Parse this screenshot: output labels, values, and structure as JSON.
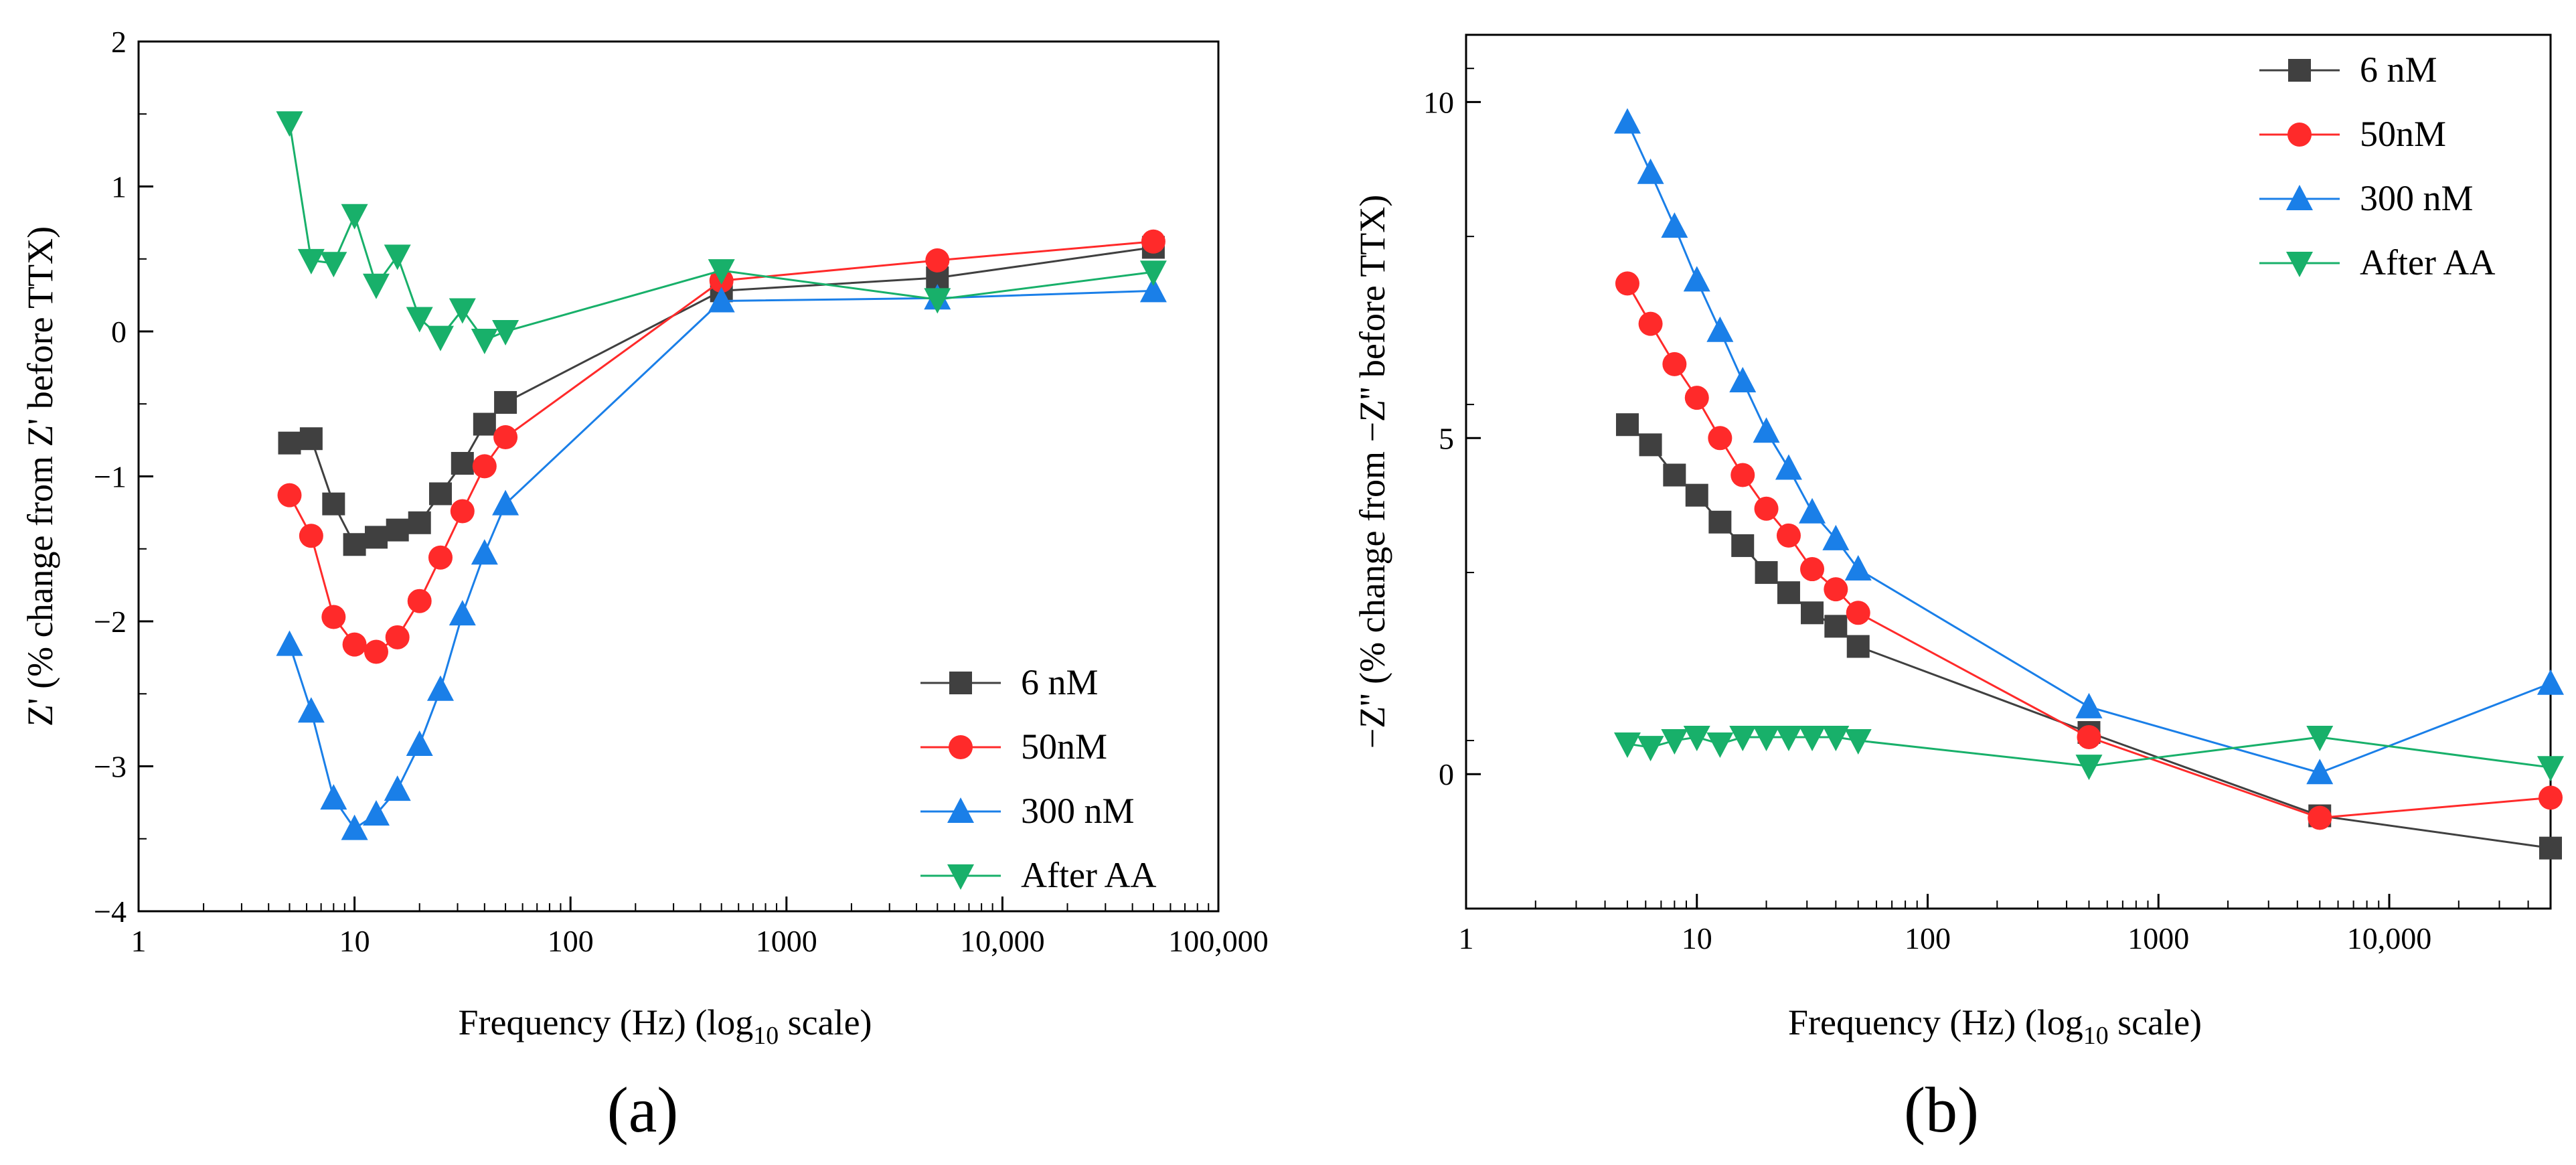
{
  "figure_labels": {
    "a": "(a)",
    "b": "(b)"
  },
  "legend_entries": [
    "6 nM",
    "50nM",
    "300 nM",
    "After AA"
  ],
  "colors": {
    "6 nM": "#404040",
    "50nM": "#ff2a2a",
    "300 nM": "#1a7fe8",
    "After AA": "#18b06a"
  },
  "chart_data": [
    {
      "id": "a",
      "type": "line",
      "xscale": "log10",
      "xlim": [
        1,
        100000
      ],
      "ylim": [
        -4,
        2
      ],
      "xticks": [
        1,
        10,
        100,
        1000,
        10000,
        100000
      ],
      "xtick_labels": [
        "1",
        "10",
        "100",
        "1000",
        "10,000",
        "100,000"
      ],
      "yticks": [
        -4,
        -3,
        -2,
        -1,
        0,
        1,
        2
      ],
      "ytick_labels": [
        "−4",
        "−3",
        "−2",
        "−1",
        "0",
        "1",
        "2"
      ],
      "xlabel": "Frequency (Hz) (log",
      "xlabel_sub": "10",
      "xlabel_tail": " scale)",
      "ylabel": "Z' (% change from Z' before TTX)",
      "legend_position": "bottom-right",
      "x": [
        5,
        6.3,
        8,
        10,
        12.6,
        15.8,
        20,
        25,
        31.6,
        40,
        50,
        500,
        5000,
        50000
      ],
      "series": [
        {
          "name": "6 nM",
          "marker": "square",
          "values": [
            -0.77,
            -0.74,
            -1.19,
            -1.47,
            -1.42,
            -1.37,
            -1.32,
            -1.12,
            -0.91,
            -0.64,
            -0.49,
            0.28,
            0.37,
            0.58
          ]
        },
        {
          "name": "50nM",
          "marker": "circle",
          "values": [
            -1.13,
            -1.41,
            -1.97,
            -2.16,
            -2.21,
            -2.11,
            -1.86,
            -1.56,
            -1.24,
            -0.93,
            -0.73,
            0.35,
            0.49,
            0.62
          ]
        },
        {
          "name": "300 nM",
          "marker": "triangle-up",
          "values": [
            -2.16,
            -2.62,
            -3.22,
            -3.43,
            -3.33,
            -3.16,
            -2.85,
            -2.47,
            -1.95,
            -1.53,
            -1.19,
            0.21,
            0.23,
            0.28
          ]
        },
        {
          "name": "After AA",
          "marker": "triangle-down",
          "values": [
            1.44,
            0.49,
            0.47,
            0.8,
            0.32,
            0.52,
            0.09,
            -0.04,
            0.15,
            -0.06,
            0.0,
            0.42,
            0.22,
            0.41
          ]
        }
      ]
    },
    {
      "id": "b",
      "type": "line",
      "xscale": "log10",
      "xlim": [
        1,
        50000
      ],
      "ylim": [
        -2,
        11
      ],
      "xticks": [
        1,
        10,
        100,
        1000,
        10000
      ],
      "xtick_labels": [
        "1",
        "10",
        "100",
        "1000",
        "10,000"
      ],
      "yticks": [
        0,
        5,
        10
      ],
      "ytick_labels": [
        "0",
        "5",
        "10"
      ],
      "xlabel": "Frequency (Hz) (log",
      "xlabel_sub": "10",
      "xlabel_tail": " scale)",
      "ylabel": "−Z'' (% change from −Z'' before TTX)",
      "legend_position": "top-right",
      "x": [
        5,
        6.3,
        8,
        10,
        12.6,
        15.8,
        20,
        25,
        31.6,
        40,
        50,
        500,
        5000,
        50000
      ],
      "series": [
        {
          "name": "6 nM",
          "marker": "square",
          "values": [
            5.2,
            4.9,
            4.45,
            4.15,
            3.75,
            3.4,
            3.0,
            2.7,
            2.4,
            2.2,
            1.9,
            0.62,
            -0.62,
            -1.1
          ]
        },
        {
          "name": "50nM",
          "marker": "circle",
          "values": [
            7.3,
            6.7,
            6.1,
            5.6,
            5.0,
            4.45,
            3.95,
            3.55,
            3.05,
            2.75,
            2.4,
            0.55,
            -0.65,
            -0.35
          ]
        },
        {
          "name": "300 nM",
          "marker": "triangle-up",
          "values": [
            9.7,
            8.95,
            8.15,
            7.35,
            6.6,
            5.85,
            5.1,
            4.55,
            3.9,
            3.5,
            3.05,
            1.0,
            0.02,
            1.35
          ]
        },
        {
          "name": "After AA",
          "marker": "triangle-down",
          "values": [
            0.45,
            0.4,
            0.5,
            0.55,
            0.45,
            0.55,
            0.55,
            0.55,
            0.55,
            0.55,
            0.5,
            0.12,
            0.55,
            0.1
          ]
        }
      ]
    }
  ]
}
